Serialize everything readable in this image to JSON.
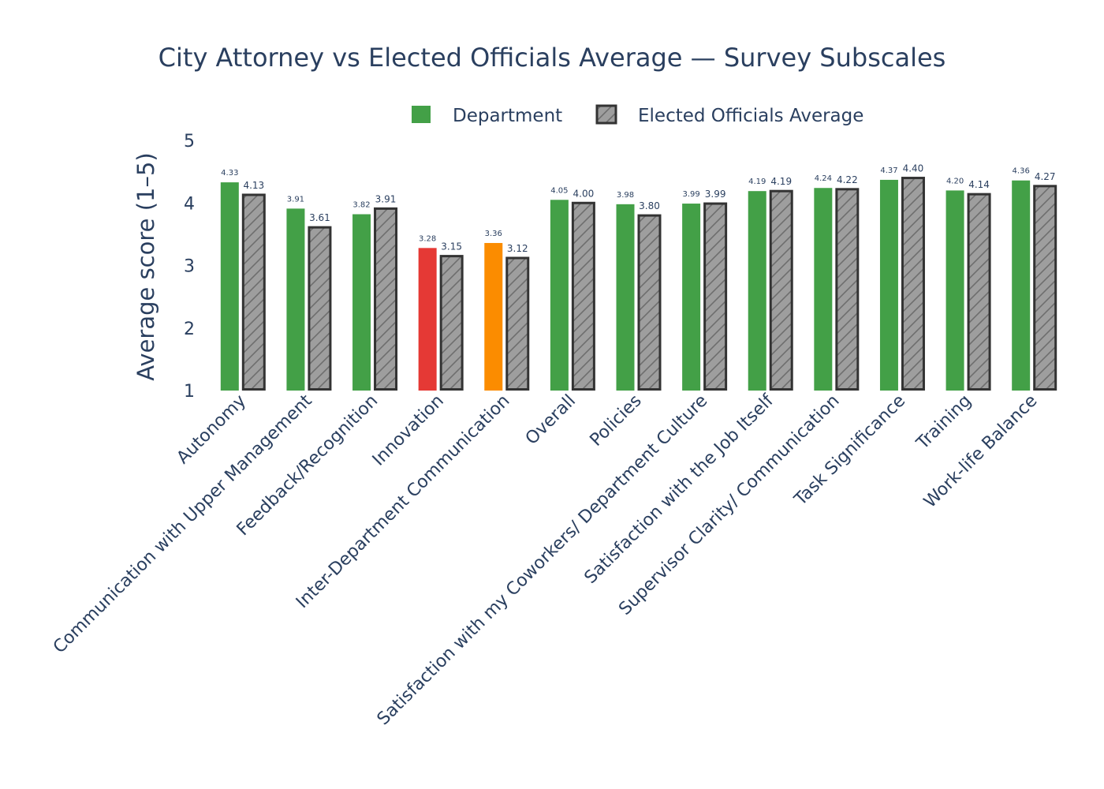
{
  "chart_data": {
    "type": "bar",
    "title": "City Attorney vs Elected Officials Average — Survey Subscales",
    "ylabel": "Average score (1–5)",
    "xlabel": "",
    "ylim": [
      1,
      5
    ],
    "yticks": [
      1,
      2,
      3,
      4,
      5
    ],
    "legend_position": "top",
    "categories": [
      "Autonomy",
      "Communication with Upper Management",
      "Feedback/Recognition",
      "Innovation",
      "Inter-Department Communication",
      "Overall",
      "Policies",
      "Satisfaction with my Coworkers/ Department Culture",
      "Satisfaction with the Job Itself",
      "Supervisor Clarity/ Communication",
      "Task Significance",
      "Training",
      "Work-life Balance"
    ],
    "series": [
      {
        "name": "Department",
        "values": [
          4.33,
          3.91,
          3.82,
          3.28,
          3.36,
          4.05,
          3.98,
          3.99,
          4.19,
          4.24,
          4.37,
          4.2,
          4.36
        ],
        "labels": [
          "4.33",
          "3.91",
          "3.82",
          "3.28",
          "3.36",
          "4.05",
          "3.98",
          "3.99",
          "4.19",
          "4.24",
          "4.37",
          "4.20",
          "4.36"
        ],
        "colors": [
          "#43a047",
          "#43a047",
          "#43a047",
          "#e53935",
          "#fb8c00",
          "#43a047",
          "#43a047",
          "#43a047",
          "#43a047",
          "#43a047",
          "#43a047",
          "#43a047",
          "#43a047"
        ]
      },
      {
        "name": "Elected Officials Average",
        "values": [
          4.13,
          3.61,
          3.91,
          3.15,
          3.12,
          4.0,
          3.8,
          3.99,
          4.19,
          4.22,
          4.4,
          4.14,
          4.27
        ],
        "labels": [
          "4.13",
          "3.61",
          "3.91",
          "3.15",
          "3.12",
          "4.00",
          "3.80",
          "3.99",
          "4.19",
          "4.22",
          "4.40",
          "4.14",
          "4.27"
        ],
        "fill": "#9e9e9e",
        "stroke": "#333333",
        "pattern": "diagonal-hatch"
      }
    ],
    "colors": {
      "good": "#43a047",
      "warning": "#fb8c00",
      "bad": "#e53935",
      "average_fill": "#9e9e9e",
      "average_stroke": "#333333",
      "text": "#2a3f5f"
    }
  }
}
